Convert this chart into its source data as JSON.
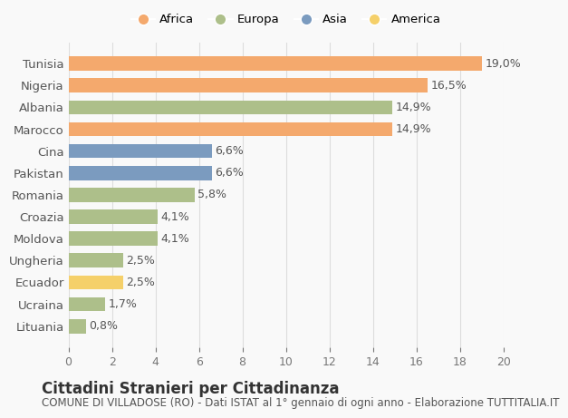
{
  "categories": [
    "Tunisia",
    "Nigeria",
    "Albania",
    "Marocco",
    "Cina",
    "Pakistan",
    "Romania",
    "Croazia",
    "Moldova",
    "Ungheria",
    "Ecuador",
    "Ucraina",
    "Lituania"
  ],
  "values": [
    19.0,
    16.5,
    14.9,
    14.9,
    6.6,
    6.6,
    5.8,
    4.1,
    4.1,
    2.5,
    2.5,
    1.7,
    0.8
  ],
  "labels": [
    "19,0%",
    "16,5%",
    "14,9%",
    "14,9%",
    "6,6%",
    "6,6%",
    "5,8%",
    "4,1%",
    "4,1%",
    "2,5%",
    "2,5%",
    "1,7%",
    "0,8%"
  ],
  "continents": [
    "Africa",
    "Africa",
    "Europa",
    "Africa",
    "Asia",
    "Asia",
    "Europa",
    "Europa",
    "Europa",
    "Europa",
    "America",
    "Europa",
    "Europa"
  ],
  "colors": {
    "Africa": "#F4A96D",
    "Europa": "#ADBF8A",
    "Asia": "#7B9BBF",
    "America": "#F5D06A"
  },
  "legend_order": [
    "Africa",
    "Europa",
    "Asia",
    "America"
  ],
  "xlim": [
    0,
    20
  ],
  "xticks": [
    0,
    2,
    4,
    6,
    8,
    10,
    12,
    14,
    16,
    18,
    20
  ],
  "title": "Cittadini Stranieri per Cittadinanza",
  "subtitle": "COMUNE DI VILLADOSE (RO) - Dati ISTAT al 1° gennaio di ogni anno - Elaborazione TUTTITALIA.IT",
  "background_color": "#f9f9f9",
  "bar_height": 0.65,
  "label_fontsize": 9,
  "title_fontsize": 12,
  "subtitle_fontsize": 8.5
}
